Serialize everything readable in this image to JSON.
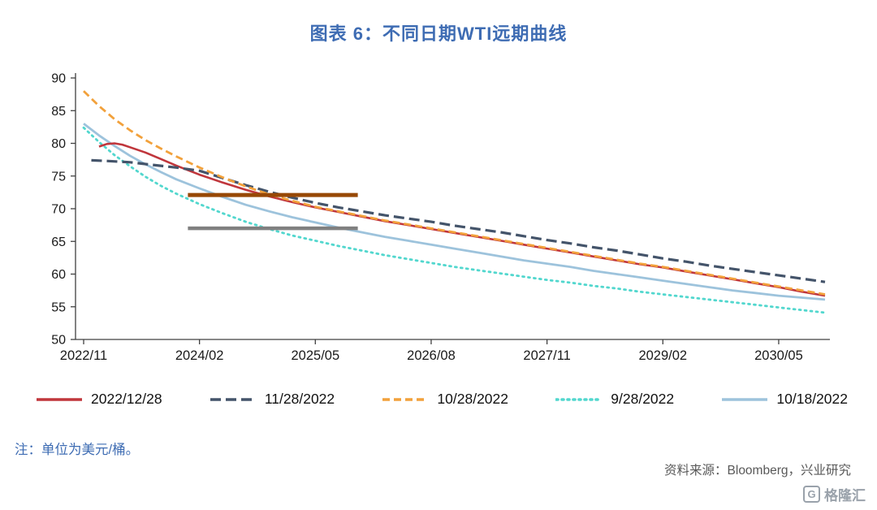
{
  "page": {
    "title": "图表 6：不同日期WTI远期曲线",
    "note": "注：单位为美元/桶。",
    "source": "资料来源：Bloomberg，兴业研究",
    "logo": {
      "icon_letter": "G",
      "text": "格隆汇"
    }
  },
  "chart_data": {
    "type": "line",
    "title": "图表 6：不同日期WTI远期曲线",
    "ylabel_unit": "美元/桶",
    "grid": false,
    "legend_position": "bottom",
    "x_axis": {
      "description": "months offset from 2022/11",
      "range": [
        0,
        96
      ],
      "tick_months": [
        0,
        15,
        30,
        45,
        60,
        75,
        90
      ],
      "tick_labels": [
        "2022/11",
        "2024/02",
        "2025/05",
        "2026/08",
        "2027/11",
        "2029/02",
        "2030/05"
      ]
    },
    "y_axis": {
      "range": [
        50,
        90
      ],
      "ticks": [
        50,
        55,
        60,
        65,
        70,
        75,
        80,
        85,
        90
      ]
    },
    "series": [
      {
        "name": "2022/12/28",
        "color": "#C0363C",
        "style": "solid",
        "dash": "",
        "width": 2.6,
        "z": 3,
        "points": [
          [
            2,
            79.5
          ],
          [
            3,
            79.9
          ],
          [
            4,
            80.0
          ],
          [
            5,
            79.8
          ],
          [
            6,
            79.4
          ],
          [
            8,
            78.6
          ],
          [
            10,
            77.6
          ],
          [
            12,
            76.6
          ],
          [
            15,
            75.2
          ],
          [
            18,
            74.0
          ],
          [
            21,
            72.9
          ],
          [
            24,
            71.9
          ],
          [
            27,
            71.0
          ],
          [
            30,
            70.2
          ],
          [
            33,
            69.5
          ],
          [
            36,
            68.8
          ],
          [
            39,
            68.1
          ],
          [
            42,
            67.5
          ],
          [
            45,
            66.9
          ],
          [
            48,
            66.3
          ],
          [
            51,
            65.7
          ],
          [
            54,
            65.1
          ],
          [
            57,
            64.5
          ],
          [
            60,
            63.9
          ],
          [
            63,
            63.3
          ],
          [
            66,
            62.7
          ],
          [
            69,
            62.1
          ],
          [
            72,
            61.5
          ],
          [
            75,
            61.0
          ],
          [
            78,
            60.4
          ],
          [
            81,
            59.8
          ],
          [
            84,
            59.2
          ],
          [
            87,
            58.6
          ],
          [
            90,
            58.0
          ],
          [
            93,
            57.3
          ],
          [
            96,
            56.7
          ]
        ]
      },
      {
        "name": "11/28/2022",
        "color": "#44546A",
        "style": "dashed",
        "dash": "13 6",
        "width": 3.2,
        "z": 4,
        "points": [
          [
            1,
            77.4
          ],
          [
            3,
            77.3
          ],
          [
            6,
            77.1
          ],
          [
            9,
            76.7
          ],
          [
            12,
            76.3
          ],
          [
            15,
            75.8
          ],
          [
            18,
            74.7
          ],
          [
            21,
            73.6
          ],
          [
            24,
            72.6
          ],
          [
            27,
            71.7
          ],
          [
            30,
            70.9
          ],
          [
            33,
            70.2
          ],
          [
            36,
            69.6
          ],
          [
            39,
            69.0
          ],
          [
            42,
            68.5
          ],
          [
            45,
            68.0
          ],
          [
            48,
            67.4
          ],
          [
            51,
            66.9
          ],
          [
            54,
            66.4
          ],
          [
            57,
            65.8
          ],
          [
            60,
            65.2
          ],
          [
            63,
            64.7
          ],
          [
            66,
            64.1
          ],
          [
            69,
            63.6
          ],
          [
            72,
            63.0
          ],
          [
            75,
            62.4
          ],
          [
            78,
            61.9
          ],
          [
            81,
            61.3
          ],
          [
            84,
            60.8
          ],
          [
            87,
            60.3
          ],
          [
            90,
            59.8
          ],
          [
            93,
            59.3
          ],
          [
            96,
            58.8
          ]
        ]
      },
      {
        "name": "10/28/2022",
        "color": "#F2A13B",
        "style": "dashed",
        "dash": "9 5",
        "width": 2.8,
        "z": 5,
        "points": [
          [
            0,
            88.0
          ],
          [
            2,
            85.7
          ],
          [
            4,
            83.7
          ],
          [
            6,
            82.0
          ],
          [
            8,
            80.5
          ],
          [
            10,
            79.2
          ],
          [
            12,
            78.0
          ],
          [
            15,
            76.3
          ],
          [
            18,
            74.8
          ],
          [
            21,
            73.4
          ],
          [
            24,
            72.2
          ],
          [
            27,
            71.2
          ],
          [
            30,
            70.3
          ],
          [
            33,
            69.6
          ],
          [
            36,
            68.9
          ],
          [
            39,
            68.2
          ],
          [
            42,
            67.6
          ],
          [
            45,
            67.0
          ],
          [
            48,
            66.4
          ],
          [
            51,
            65.8
          ],
          [
            54,
            65.2
          ],
          [
            57,
            64.6
          ],
          [
            60,
            64.0
          ],
          [
            63,
            63.4
          ],
          [
            66,
            62.8
          ],
          [
            69,
            62.2
          ],
          [
            72,
            61.6
          ],
          [
            75,
            61.1
          ],
          [
            78,
            60.5
          ],
          [
            81,
            59.9
          ],
          [
            84,
            59.3
          ],
          [
            87,
            58.7
          ],
          [
            90,
            58.1
          ],
          [
            93,
            57.5
          ],
          [
            96,
            56.9
          ]
        ]
      },
      {
        "name": "9/28/2022",
        "color": "#52D7CE",
        "style": "dotted",
        "dash": "2 5",
        "width": 2.8,
        "z": 1,
        "points": [
          [
            0,
            82.4
          ],
          [
            2,
            80.2
          ],
          [
            4,
            78.2
          ],
          [
            6,
            76.5
          ],
          [
            8,
            74.9
          ],
          [
            10,
            73.5
          ],
          [
            12,
            72.3
          ],
          [
            15,
            70.7
          ],
          [
            18,
            69.3
          ],
          [
            21,
            68.0
          ],
          [
            24,
            66.9
          ],
          [
            27,
            65.9
          ],
          [
            30,
            65.1
          ],
          [
            33,
            64.3
          ],
          [
            36,
            63.6
          ],
          [
            39,
            62.9
          ],
          [
            42,
            62.3
          ],
          [
            45,
            61.7
          ],
          [
            48,
            61.1
          ],
          [
            51,
            60.6
          ],
          [
            54,
            60.1
          ],
          [
            57,
            59.6
          ],
          [
            60,
            59.1
          ],
          [
            63,
            58.7
          ],
          [
            66,
            58.2
          ],
          [
            69,
            57.8
          ],
          [
            72,
            57.3
          ],
          [
            75,
            56.9
          ],
          [
            78,
            56.5
          ],
          [
            81,
            56.1
          ],
          [
            84,
            55.7
          ],
          [
            87,
            55.3
          ],
          [
            90,
            54.9
          ],
          [
            93,
            54.5
          ],
          [
            96,
            54.1
          ]
        ]
      },
      {
        "name": "10/18/2022",
        "color": "#9DC3DC",
        "style": "solid",
        "dash": "",
        "width": 2.8,
        "z": 2,
        "points": [
          [
            0,
            83.0
          ],
          [
            2,
            81.2
          ],
          [
            4,
            79.6
          ],
          [
            6,
            78.1
          ],
          [
            8,
            76.8
          ],
          [
            10,
            75.6
          ],
          [
            12,
            74.5
          ],
          [
            15,
            73.1
          ],
          [
            18,
            71.8
          ],
          [
            21,
            70.6
          ],
          [
            24,
            69.6
          ],
          [
            27,
            68.7
          ],
          [
            30,
            67.9
          ],
          [
            33,
            67.1
          ],
          [
            36,
            66.4
          ],
          [
            39,
            65.7
          ],
          [
            42,
            65.1
          ],
          [
            45,
            64.5
          ],
          [
            48,
            63.9
          ],
          [
            51,
            63.3
          ],
          [
            54,
            62.7
          ],
          [
            57,
            62.1
          ],
          [
            60,
            61.6
          ],
          [
            63,
            61.1
          ],
          [
            66,
            60.5
          ],
          [
            69,
            60.0
          ],
          [
            72,
            59.5
          ],
          [
            75,
            59.0
          ],
          [
            78,
            58.5
          ],
          [
            81,
            58.0
          ],
          [
            84,
            57.5
          ],
          [
            87,
            57.1
          ],
          [
            90,
            56.7
          ],
          [
            93,
            56.4
          ],
          [
            96,
            56.1
          ]
        ]
      }
    ],
    "annotations": [
      {
        "type": "hline-segment",
        "name": "upper-horizontal-bar",
        "y": 72.1,
        "x_from": 13.5,
        "x_to": 35.5,
        "color": "#974806",
        "width": 5
      },
      {
        "type": "hline-segment",
        "name": "lower-horizontal-bar",
        "y": 67.0,
        "x_from": 13.5,
        "x_to": 35.5,
        "color": "#808080",
        "width": 4.5
      }
    ],
    "axis_color": "#404040",
    "tick_label_color": "#1a1a1a"
  }
}
